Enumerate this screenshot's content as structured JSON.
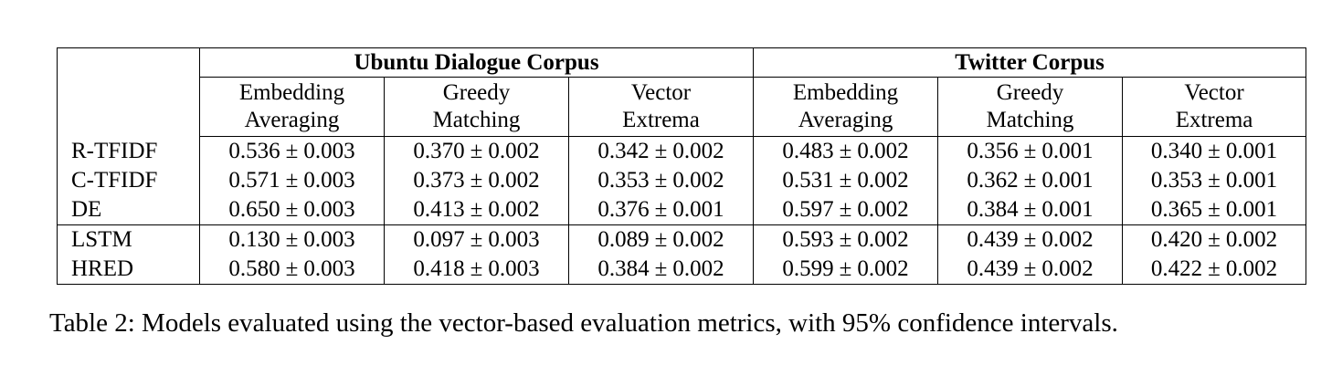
{
  "table": {
    "groups": [
      {
        "label": "Ubuntu Dialogue Corpus"
      },
      {
        "label": "Twitter Corpus"
      }
    ],
    "metrics": [
      {
        "line1": "Embedding",
        "line2": "Averaging"
      },
      {
        "line1": "Greedy",
        "line2": "Matching"
      },
      {
        "line1": "Vector",
        "line2": "Extrema"
      },
      {
        "line1": "Embedding",
        "line2": "Averaging"
      },
      {
        "line1": "Greedy",
        "line2": "Matching"
      },
      {
        "line1": "Vector",
        "line2": "Extrema"
      }
    ],
    "pm_symbol": "±",
    "rows": [
      {
        "model": "R-TFIDF",
        "cells": [
          {
            "mean": "0.536",
            "ci": "0.003",
            "bold": false
          },
          {
            "mean": "0.370",
            "ci": "0.002",
            "bold": false
          },
          {
            "mean": "0.342",
            "ci": "0.002",
            "bold": false
          },
          {
            "mean": "0.483",
            "ci": "0.002",
            "bold": false
          },
          {
            "mean": "0.356",
            "ci": "0.001",
            "bold": false
          },
          {
            "mean": "0.340",
            "ci": "0.001",
            "bold": false
          }
        ]
      },
      {
        "model": "C-TFIDF",
        "cells": [
          {
            "mean": "0.571",
            "ci": "0.003",
            "bold": false
          },
          {
            "mean": "0.373",
            "ci": "0.002",
            "bold": false
          },
          {
            "mean": "0.353",
            "ci": "0.002",
            "bold": false
          },
          {
            "mean": "0.531",
            "ci": "0.002",
            "bold": false
          },
          {
            "mean": "0.362",
            "ci": "0.001",
            "bold": false
          },
          {
            "mean": "0.353",
            "ci": "0.001",
            "bold": false
          }
        ]
      },
      {
        "model": "DE",
        "cells": [
          {
            "mean": "0.650",
            "ci": "0.003",
            "bold": true
          },
          {
            "mean": "0.413",
            "ci": "0.002",
            "bold": false
          },
          {
            "mean": "0.376",
            "ci": "0.001",
            "bold": false
          },
          {
            "mean": "0.597",
            "ci": "0.002",
            "bold": true
          },
          {
            "mean": "0.384",
            "ci": "0.001",
            "bold": false
          },
          {
            "mean": "0.365",
            "ci": "0.001",
            "bold": false
          }
        ]
      },
      {
        "model": "LSTM",
        "cells": [
          {
            "mean": "0.130",
            "ci": "0.003",
            "bold": false
          },
          {
            "mean": "0.097",
            "ci": "0.003",
            "bold": false
          },
          {
            "mean": "0.089",
            "ci": "0.002",
            "bold": false
          },
          {
            "mean": "0.593",
            "ci": "0.002",
            "bold": false
          },
          {
            "mean": "0.439",
            "ci": "0.002",
            "bold": true
          },
          {
            "mean": "0.420",
            "ci": "0.002",
            "bold": true
          }
        ]
      },
      {
        "model": "HRED",
        "cells": [
          {
            "mean": "0.580",
            "ci": "0.003",
            "bold": false
          },
          {
            "mean": "0.418",
            "ci": "0.003",
            "bold": true
          },
          {
            "mean": "0.384",
            "ci": "0.002",
            "bold": true
          },
          {
            "mean": "0.599",
            "ci": "0.002",
            "bold": true
          },
          {
            "mean": "0.439",
            "ci": "0.002",
            "bold": true
          },
          {
            "mean": "0.422",
            "ci": "0.002",
            "bold": true
          }
        ]
      }
    ]
  },
  "caption": "Table 2: Models evaluated using the vector-based evaluation metrics, with 95% confidence intervals."
}
